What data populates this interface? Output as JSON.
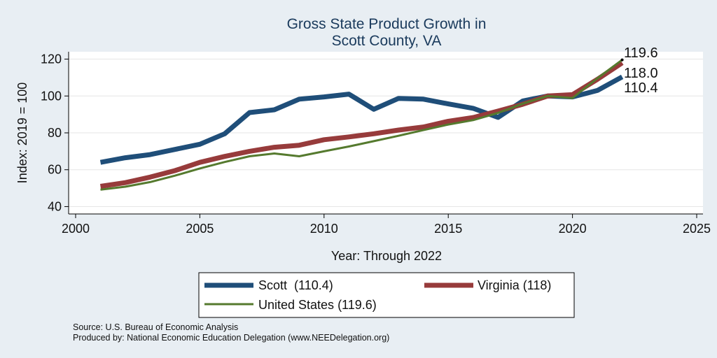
{
  "chart_data": {
    "type": "line",
    "title_lines": [
      "Gross State Product Growth in",
      "Scott County, VA"
    ],
    "xlabel": "Year: Through 2022",
    "ylabel": "Index: 2019 = 100",
    "xlim": [
      2000,
      2025
    ],
    "ylim": [
      36,
      124
    ],
    "x_ticks": [
      2000,
      2005,
      2010,
      2015,
      2020,
      2025
    ],
    "y_ticks": [
      40,
      60,
      80,
      100,
      120
    ],
    "grid": true,
    "x": [
      2001,
      2002,
      2003,
      2004,
      2005,
      2006,
      2007,
      2008,
      2009,
      2010,
      2011,
      2012,
      2013,
      2014,
      2015,
      2016,
      2017,
      2018,
      2019,
      2020,
      2021,
      2022
    ],
    "series": [
      {
        "name": "Scott",
        "legend_label": "Scott  (110.4)",
        "end_label": "110.4",
        "color": "#1f4e79",
        "values": [
          64,
          66.5,
          68.2,
          71,
          73.8,
          79.5,
          91,
          92.5,
          98.3,
          99.5,
          101,
          92.8,
          98.7,
          98.3,
          95.7,
          93.3,
          88.4,
          97.3,
          100,
          99.5,
          103,
          110.4
        ]
      },
      {
        "name": "Virginia",
        "legend_label": "Virginia (118)",
        "end_label": "118.0",
        "color": "#973b3b",
        "values": [
          51,
          53,
          56,
          59.5,
          64,
          67.2,
          70,
          72.2,
          73.3,
          76.3,
          77.8,
          79.5,
          81.5,
          83.2,
          86.3,
          88.3,
          91.8,
          95.5,
          100,
          100.7,
          109,
          118
        ]
      },
      {
        "name": "United States",
        "legend_label": "United States (119.6)",
        "end_label": "119.6",
        "color": "#557a2e",
        "values": [
          49.2,
          50.8,
          53.3,
          56.8,
          60.7,
          64.2,
          67.3,
          68.8,
          67.3,
          70,
          72.6,
          75.5,
          78.4,
          81.5,
          84.5,
          86.9,
          90.8,
          95.8,
          100,
          98.9,
          109.6,
          119.6
        ]
      }
    ],
    "legend_placement": "bottom",
    "source_note": "Source: U.S. Bureau of Economic Analysis",
    "produced_note": "Produced by: National Economic Education Delegation (www.NEEDelegation.org)"
  }
}
